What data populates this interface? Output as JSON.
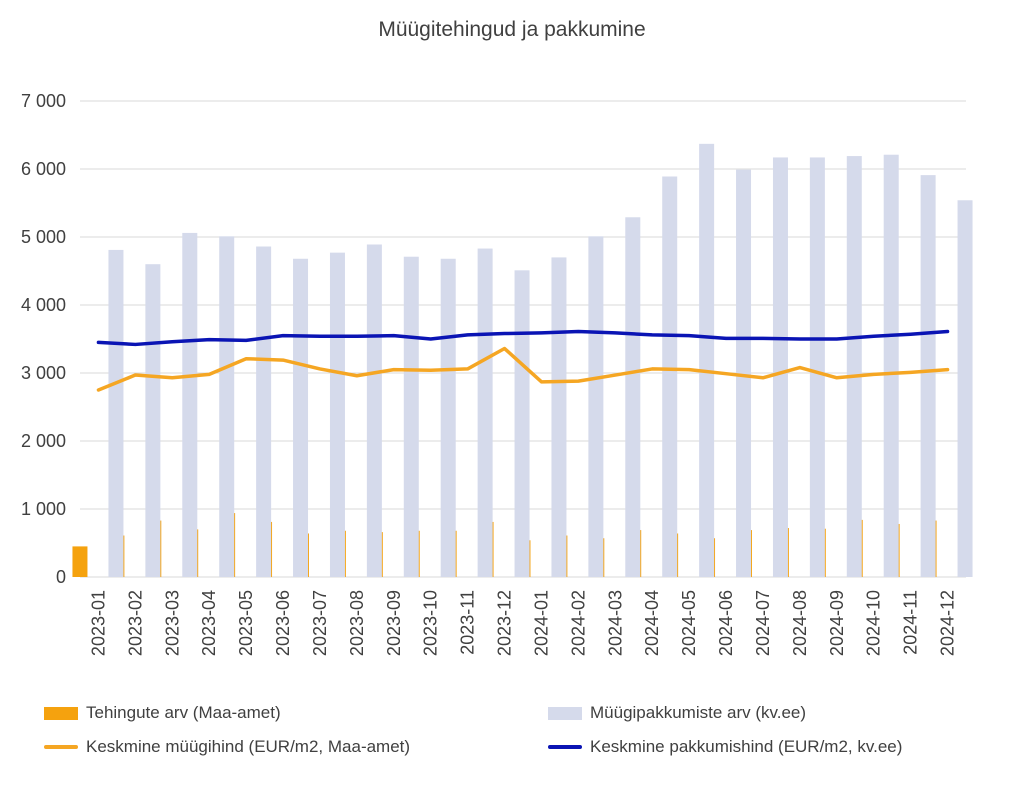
{
  "chart_data": {
    "type": "bar",
    "title": "Müügitehingud ja pakkumine",
    "xlabel": "",
    "ylabel": "",
    "ylim": [
      0,
      7000
    ],
    "yticks": [
      0,
      1000,
      2000,
      3000,
      4000,
      5000,
      6000,
      7000
    ],
    "ytick_labels": [
      "0",
      "1 000",
      "2 000",
      "3 000",
      "4 000",
      "5 000",
      "6 000",
      "7 000"
    ],
    "grid": true,
    "legend_position": "bottom",
    "categories": [
      "2023-01",
      "2023-02",
      "2023-03",
      "2023-04",
      "2023-05",
      "2023-06",
      "2023-07",
      "2023-08",
      "2023-09",
      "2023-10",
      "2023-11",
      "2023-12",
      "2024-01",
      "2024-02",
      "2024-03",
      "2024-04",
      "2024-05",
      "2024-06",
      "2024-07",
      "2024-08",
      "2024-09",
      "2024-10",
      "2024-11",
      "2024-12"
    ],
    "series": [
      {
        "name": "Tehingute arv (Maa-amet)",
        "type": "bar",
        "color": "#F5A20E",
        "values": [
          450,
          610,
          830,
          700,
          940,
          810,
          640,
          680,
          660,
          680,
          680,
          810,
          540,
          610,
          570,
          690,
          640,
          570,
          690,
          720,
          710,
          840,
          780,
          830
        ]
      },
      {
        "name": "Müügipakkumiste arv (kv.ee)",
        "type": "bar",
        "color": "#D5DAEB",
        "values": [
          4810,
          4600,
          5060,
          5010,
          4860,
          4680,
          4770,
          4890,
          4710,
          4680,
          4830,
          4510,
          4700,
          5010,
          5290,
          5890,
          6370,
          5990,
          6170,
          6170,
          6190,
          6210,
          5910,
          5540
        ]
      },
      {
        "name": "Keskmine müügihind (EUR/m2, Maa-amet)",
        "type": "line",
        "color": "#F5A623",
        "values": [
          2750,
          2970,
          2930,
          2980,
          3210,
          3190,
          3060,
          2960,
          3050,
          3040,
          3060,
          3360,
          2870,
          2880,
          2970,
          3060,
          3050,
          2990,
          2930,
          3080,
          2930,
          2980,
          3010,
          3050
        ]
      },
      {
        "name": "Keskmine pakkumishind (EUR/m2, kv.ee)",
        "type": "line",
        "color": "#0A14B4",
        "values": [
          3450,
          3420,
          3460,
          3490,
          3480,
          3550,
          3540,
          3540,
          3550,
          3500,
          3560,
          3580,
          3590,
          3610,
          3590,
          3560,
          3550,
          3510,
          3510,
          3500,
          3500,
          3540,
          3570,
          3610
        ]
      }
    ]
  }
}
